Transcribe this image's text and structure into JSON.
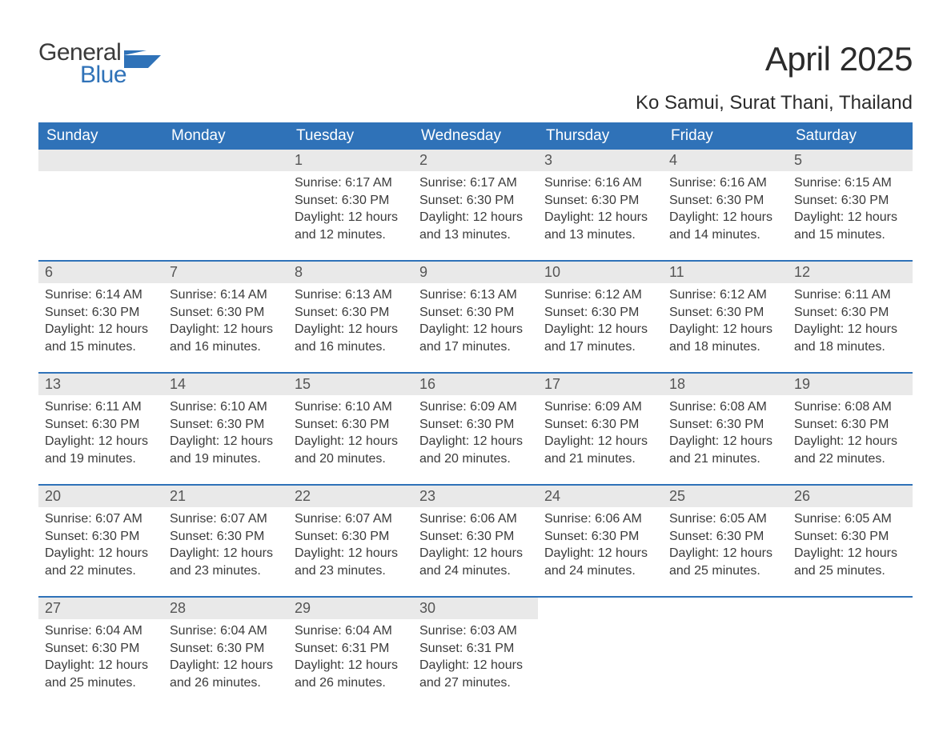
{
  "brand": {
    "text1": "General",
    "text2": "Blue",
    "flag_color": "#2f72b8",
    "text1_color": "#3a3a3a"
  },
  "header": {
    "month_title": "April 2025",
    "location": "Ko Samui, Surat Thani, Thailand"
  },
  "columns": [
    "Sunday",
    "Monday",
    "Tuesday",
    "Wednesday",
    "Thursday",
    "Friday",
    "Saturday"
  ],
  "colors": {
    "header_bg": "#2f72b8",
    "header_text": "#ffffff",
    "daynum_bg": "#e9e9e9",
    "body_text": "#3b3b3b",
    "sep_line": "#2f72b8"
  },
  "labels": {
    "sunrise": "Sunrise: ",
    "sunset": "Sunset: ",
    "daylight": "Daylight: "
  },
  "weeks": [
    [
      null,
      null,
      {
        "n": "1",
        "sr": "6:17 AM",
        "ss": "6:30 PM",
        "dl": "12 hours and 12 minutes."
      },
      {
        "n": "2",
        "sr": "6:17 AM",
        "ss": "6:30 PM",
        "dl": "12 hours and 13 minutes."
      },
      {
        "n": "3",
        "sr": "6:16 AM",
        "ss": "6:30 PM",
        "dl": "12 hours and 13 minutes."
      },
      {
        "n": "4",
        "sr": "6:16 AM",
        "ss": "6:30 PM",
        "dl": "12 hours and 14 minutes."
      },
      {
        "n": "5",
        "sr": "6:15 AM",
        "ss": "6:30 PM",
        "dl": "12 hours and 15 minutes."
      }
    ],
    [
      {
        "n": "6",
        "sr": "6:14 AM",
        "ss": "6:30 PM",
        "dl": "12 hours and 15 minutes."
      },
      {
        "n": "7",
        "sr": "6:14 AM",
        "ss": "6:30 PM",
        "dl": "12 hours and 16 minutes."
      },
      {
        "n": "8",
        "sr": "6:13 AM",
        "ss": "6:30 PM",
        "dl": "12 hours and 16 minutes."
      },
      {
        "n": "9",
        "sr": "6:13 AM",
        "ss": "6:30 PM",
        "dl": "12 hours and 17 minutes."
      },
      {
        "n": "10",
        "sr": "6:12 AM",
        "ss": "6:30 PM",
        "dl": "12 hours and 17 minutes."
      },
      {
        "n": "11",
        "sr": "6:12 AM",
        "ss": "6:30 PM",
        "dl": "12 hours and 18 minutes."
      },
      {
        "n": "12",
        "sr": "6:11 AM",
        "ss": "6:30 PM",
        "dl": "12 hours and 18 minutes."
      }
    ],
    [
      {
        "n": "13",
        "sr": "6:11 AM",
        "ss": "6:30 PM",
        "dl": "12 hours and 19 minutes."
      },
      {
        "n": "14",
        "sr": "6:10 AM",
        "ss": "6:30 PM",
        "dl": "12 hours and 19 minutes."
      },
      {
        "n": "15",
        "sr": "6:10 AM",
        "ss": "6:30 PM",
        "dl": "12 hours and 20 minutes."
      },
      {
        "n": "16",
        "sr": "6:09 AM",
        "ss": "6:30 PM",
        "dl": "12 hours and 20 minutes."
      },
      {
        "n": "17",
        "sr": "6:09 AM",
        "ss": "6:30 PM",
        "dl": "12 hours and 21 minutes."
      },
      {
        "n": "18",
        "sr": "6:08 AM",
        "ss": "6:30 PM",
        "dl": "12 hours and 21 minutes."
      },
      {
        "n": "19",
        "sr": "6:08 AM",
        "ss": "6:30 PM",
        "dl": "12 hours and 22 minutes."
      }
    ],
    [
      {
        "n": "20",
        "sr": "6:07 AM",
        "ss": "6:30 PM",
        "dl": "12 hours and 22 minutes."
      },
      {
        "n": "21",
        "sr": "6:07 AM",
        "ss": "6:30 PM",
        "dl": "12 hours and 23 minutes."
      },
      {
        "n": "22",
        "sr": "6:07 AM",
        "ss": "6:30 PM",
        "dl": "12 hours and 23 minutes."
      },
      {
        "n": "23",
        "sr": "6:06 AM",
        "ss": "6:30 PM",
        "dl": "12 hours and 24 minutes."
      },
      {
        "n": "24",
        "sr": "6:06 AM",
        "ss": "6:30 PM",
        "dl": "12 hours and 24 minutes."
      },
      {
        "n": "25",
        "sr": "6:05 AM",
        "ss": "6:30 PM",
        "dl": "12 hours and 25 minutes."
      },
      {
        "n": "26",
        "sr": "6:05 AM",
        "ss": "6:30 PM",
        "dl": "12 hours and 25 minutes."
      }
    ],
    [
      {
        "n": "27",
        "sr": "6:04 AM",
        "ss": "6:30 PM",
        "dl": "12 hours and 25 minutes."
      },
      {
        "n": "28",
        "sr": "6:04 AM",
        "ss": "6:30 PM",
        "dl": "12 hours and 26 minutes."
      },
      {
        "n": "29",
        "sr": "6:04 AM",
        "ss": "6:31 PM",
        "dl": "12 hours and 26 minutes."
      },
      {
        "n": "30",
        "sr": "6:03 AM",
        "ss": "6:31 PM",
        "dl": "12 hours and 27 minutes."
      },
      null,
      null,
      null
    ]
  ]
}
